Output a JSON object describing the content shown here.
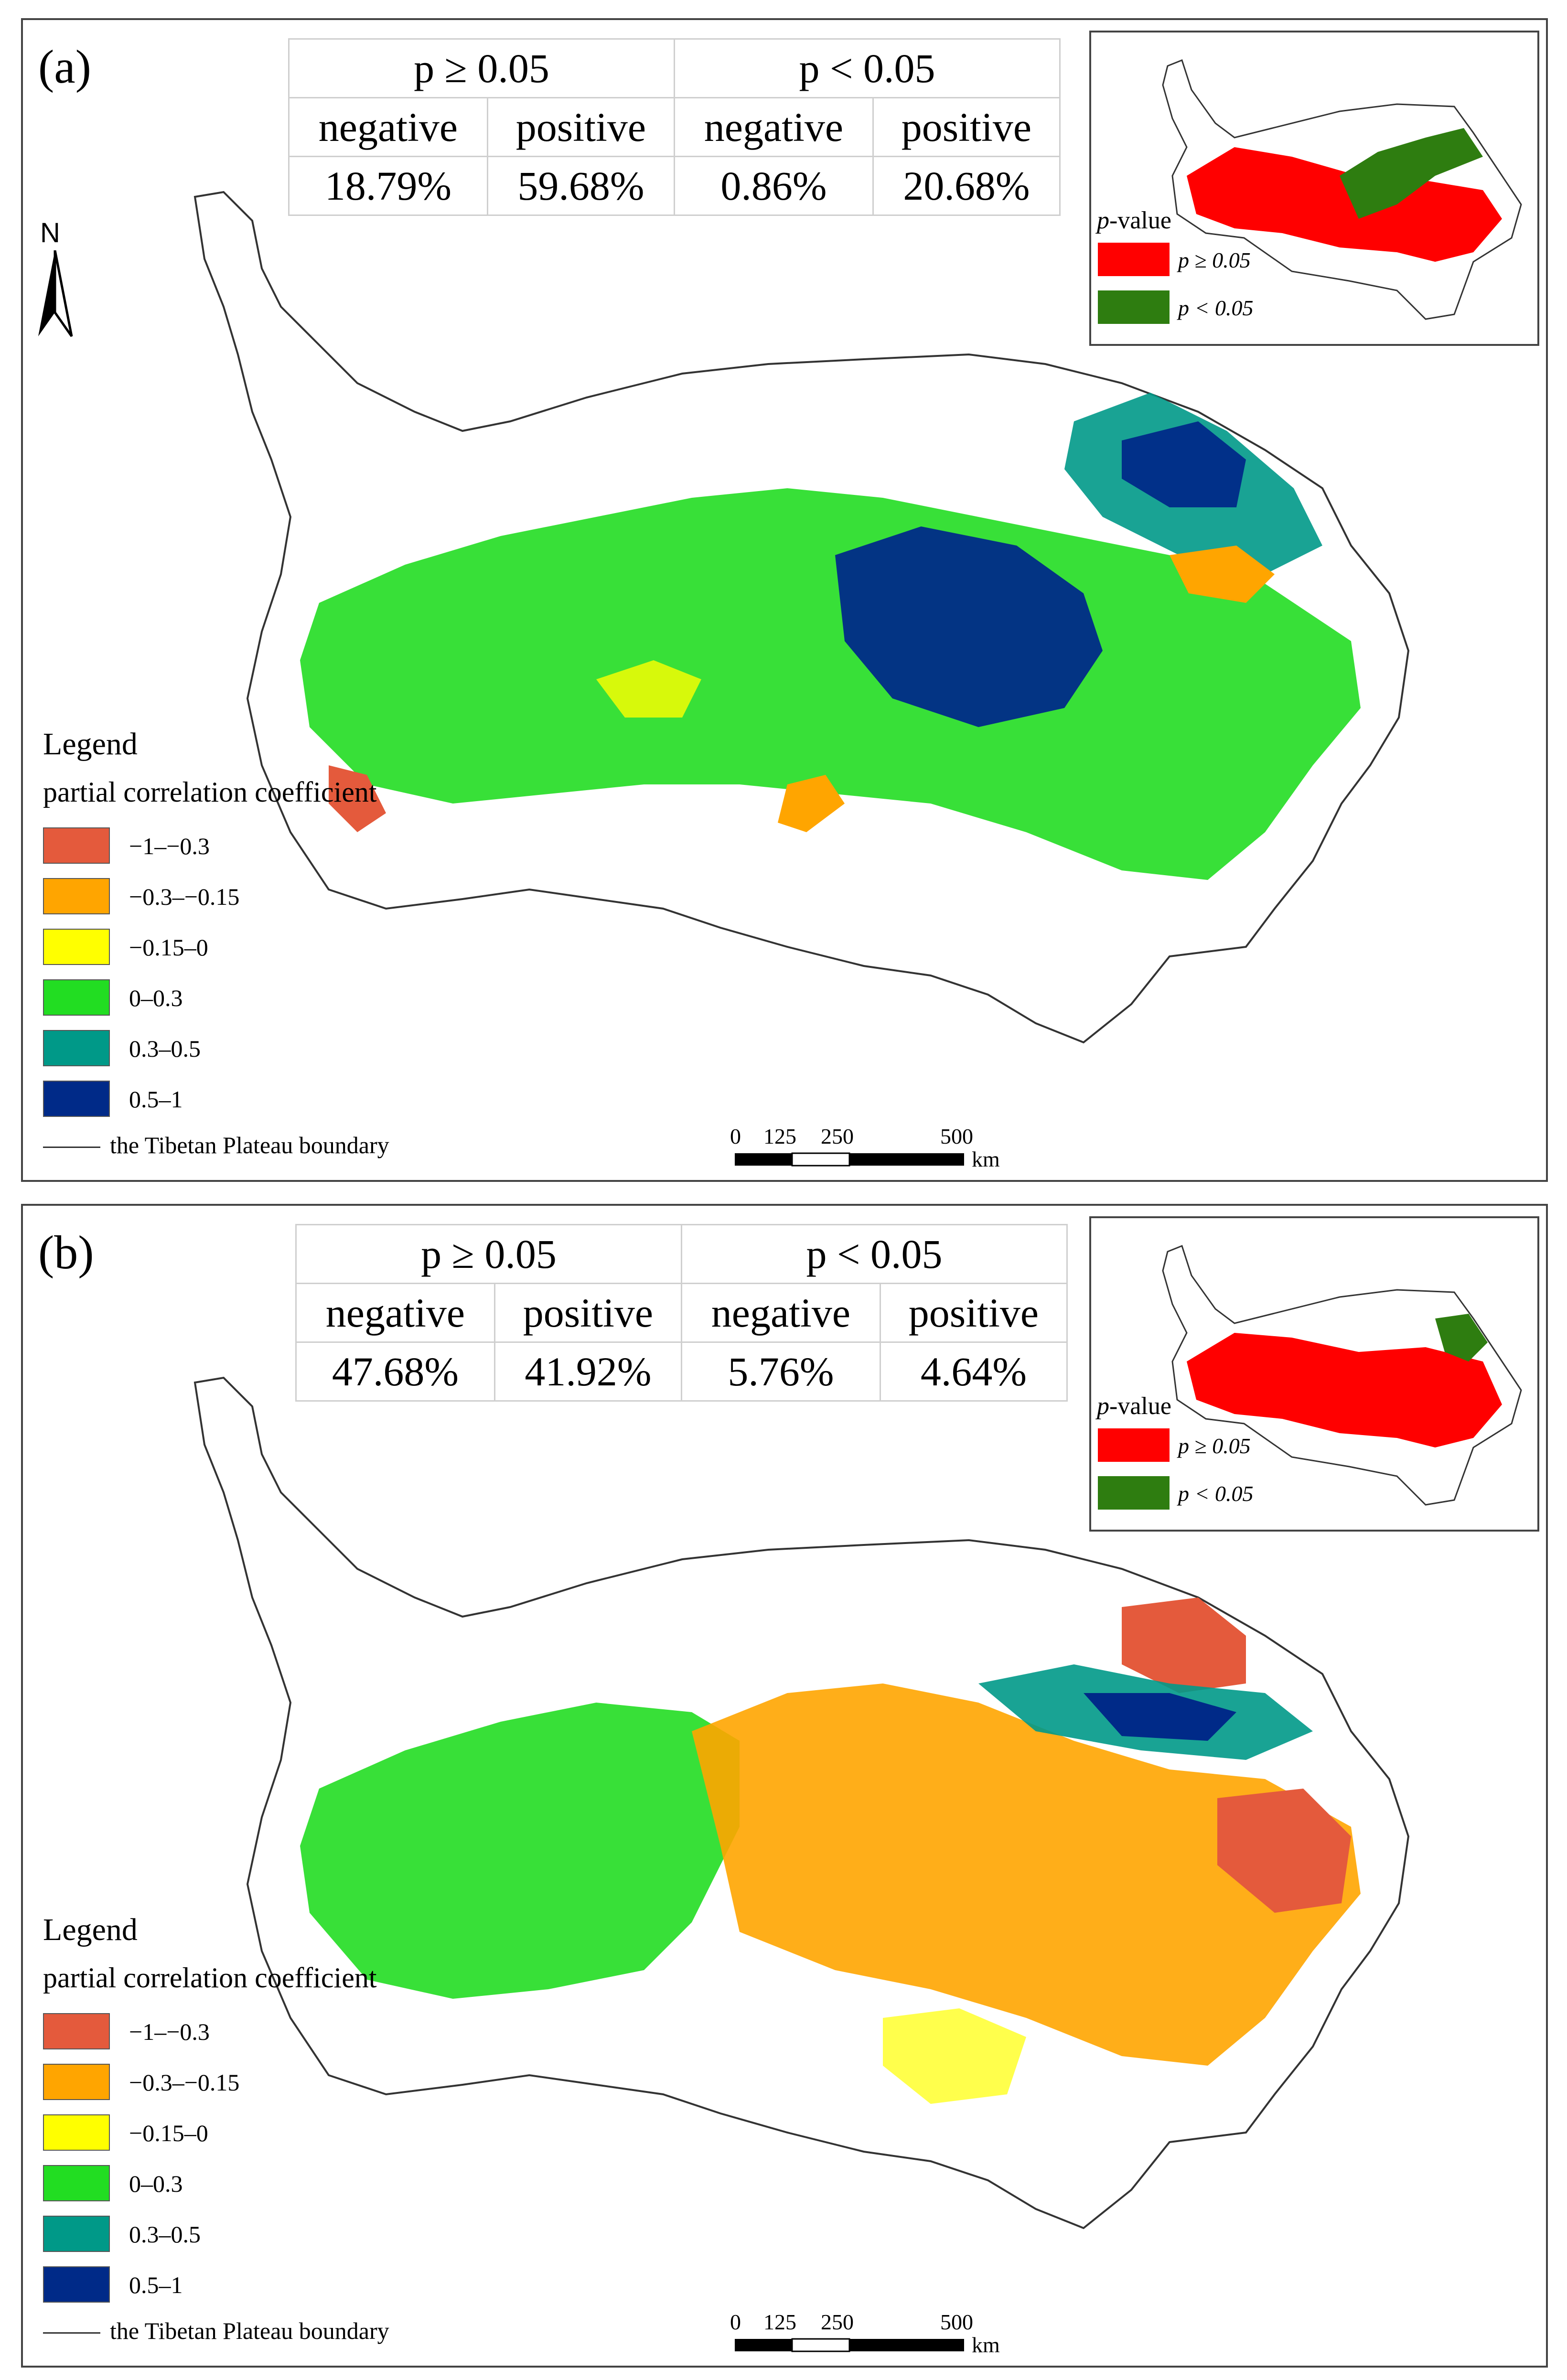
{
  "panels": [
    {
      "label": "(a)",
      "stats": {
        "group1": "p ≥ 0.05",
        "group2": "p < 0.05",
        "col_labels": [
          "negative",
          "positive",
          "negative",
          "positive"
        ],
        "values": [
          "18.79%",
          "59.68%",
          "0.86%",
          "20.68%"
        ]
      },
      "inset": {
        "title_italic": "p",
        "title_rest": "-value",
        "items": [
          "p ≥ 0.05",
          "p < 0.05"
        ]
      },
      "legend": {
        "title": "Legend",
        "subtitle": "partial correlation coefficient",
        "classes": [
          "−1–−0.3",
          "−0.3–−0.15",
          "−0.15–0",
          "0–0.3",
          "0.3–0.5",
          "0.5–1"
        ],
        "boundary": "the Tibetan Plateau boundary"
      },
      "north": "N",
      "scale": {
        "ticks": [
          "0",
          "125",
          "250",
          "500"
        ],
        "unit": "km"
      }
    },
    {
      "label": "(b)",
      "stats": {
        "group1": "p ≥ 0.05",
        "group2": "p < 0.05",
        "col_labels": [
          "negative",
          "positive",
          "negative",
          "positive"
        ],
        "values": [
          "47.68%",
          "41.92%",
          "5.76%",
          "4.64%"
        ]
      },
      "inset": {
        "title_italic": "p",
        "title_rest": "-value",
        "items": [
          "p ≥ 0.05",
          "p < 0.05"
        ]
      },
      "legend": {
        "title": "Legend",
        "subtitle": "partial correlation coefficient",
        "classes": [
          "−1–−0.3",
          "−0.3–−0.15",
          "−0.15–0",
          "0–0.3",
          "0.3–0.5",
          "0.5–1"
        ],
        "boundary": "the Tibetan Plateau boundary"
      },
      "scale": {
        "ticks": [
          "0",
          "125",
          "250",
          "500"
        ],
        "unit": "km"
      }
    }
  ],
  "colors": {
    "class_colors": [
      "#e45a3c",
      "#ffa500",
      "#ffff00",
      "#22dd22",
      "#009988",
      "#002a88"
    ],
    "p_high": "#ff0000",
    "p_low": "#2e7d10"
  }
}
